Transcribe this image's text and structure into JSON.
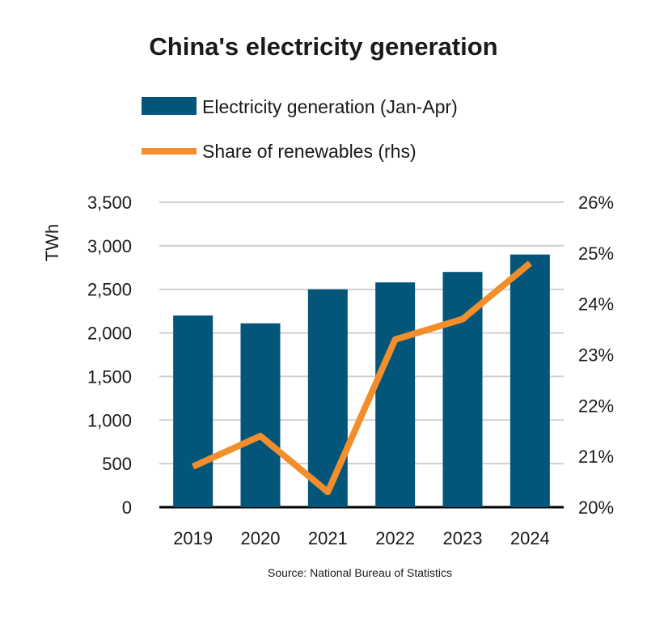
{
  "chart_data": {
    "type": "bar+line",
    "title": "China's electricity generation",
    "categories": [
      "2019",
      "2020",
      "2021",
      "2022",
      "2023",
      "2024"
    ],
    "series": [
      {
        "name": "Electricity generation (Jan-Apr)",
        "type": "bar",
        "axis": "left",
        "color": "#04557A",
        "values": [
          2200,
          2110,
          2500,
          2580,
          2700,
          2900
        ]
      },
      {
        "name": "Share of renewables (rhs)",
        "type": "line",
        "axis": "right",
        "color": "#F28E2B",
        "values": [
          20.8,
          21.4,
          20.3,
          23.3,
          23.7,
          24.8
        ]
      }
    ],
    "ylabel": "TWh",
    "ylim": [
      0,
      3500
    ],
    "yticks": [
      "0",
      "500",
      "1,000",
      "1,500",
      "2,000",
      "2,500",
      "3,000",
      "3,500"
    ],
    "y2lim": [
      20,
      26
    ],
    "y2ticks": [
      "20%",
      "21%",
      "22%",
      "23%",
      "24%",
      "25%",
      "26%"
    ],
    "grid": true,
    "legend": "top",
    "source": "Source: National Bureau of Statistics"
  }
}
